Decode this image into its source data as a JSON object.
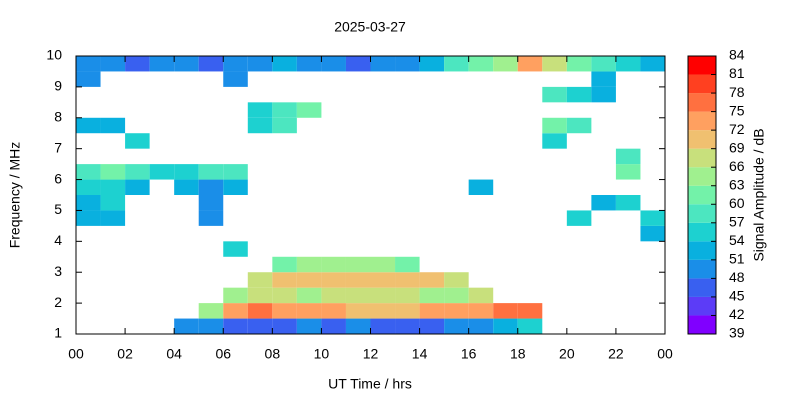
{
  "chart_data": {
    "type": "heatmap",
    "title": "2025-03-27",
    "x_label": "UT Time / hrs",
    "y_label": "Frequency / MHz",
    "colorbar_label": "Signal Amplitude / dB",
    "xlim": [
      0,
      24
    ],
    "xticks": [
      {
        "value": 0,
        "label": "00"
      },
      {
        "value": 2,
        "label": "02"
      },
      {
        "value": 4,
        "label": "04"
      },
      {
        "value": 6,
        "label": "06"
      },
      {
        "value": 8,
        "label": "08"
      },
      10,
      12,
      14,
      16,
      18,
      20,
      22,
      {
        "value": 24,
        "label": "00"
      }
    ],
    "ylim": [
      1,
      10
    ],
    "yticks": [
      1,
      2,
      3,
      4,
      5,
      6,
      7,
      8,
      9,
      10
    ],
    "clim": [
      39,
      84
    ],
    "cticks": [
      39,
      42,
      45,
      48,
      51,
      54,
      57,
      60,
      63,
      66,
      69,
      72,
      75,
      78,
      81,
      84
    ],
    "colors": [
      "#8000ff",
      "#5c3cf7",
      "#3960f0",
      "#1a8ee8",
      "#09b0df",
      "#1dd1d0",
      "#4ce6c0",
      "#73f2a9",
      "#a0f08f",
      "#c8e07c",
      "#f0c070",
      "#ffa060",
      "#ff7040",
      "#ff4020",
      "#ff0000"
    ],
    "xbins": [
      0,
      1,
      2,
      3,
      4,
      5,
      6,
      7,
      8,
      9,
      10,
      11,
      12,
      13,
      14,
      15,
      16,
      17,
      18,
      19,
      20,
      21,
      22,
      23,
      24
    ],
    "ybins": [
      1,
      1.5,
      2,
      2.5,
      3,
      3.5,
      4,
      4.5,
      5,
      5.5,
      6,
      6.5,
      7,
      7.5,
      8,
      8.5,
      9,
      9.5,
      10
    ],
    "values": [
      [
        null,
        null,
        null,
        null,
        50,
        48,
        47,
        46,
        46,
        48,
        47,
        48,
        47,
        46,
        47,
        48,
        50,
        52,
        55,
        null,
        null,
        null,
        null,
        null
      ],
      [
        null,
        null,
        null,
        null,
        null,
        63,
        72,
        75,
        73,
        72,
        72,
        70,
        70,
        71,
        72,
        73,
        74,
        75,
        76,
        null,
        null,
        null,
        null,
        null
      ],
      [
        null,
        null,
        null,
        null,
        null,
        null,
        63,
        66,
        66,
        65,
        66,
        66,
        66,
        66,
        65,
        65,
        66,
        null,
        null,
        null,
        null,
        null,
        null,
        null
      ],
      [
        null,
        null,
        null,
        null,
        null,
        null,
        null,
        66,
        69,
        69,
        69,
        70,
        70,
        69,
        69,
        68,
        null,
        null,
        null,
        null,
        null,
        null,
        null,
        null
      ],
      [
        null,
        null,
        null,
        null,
        null,
        null,
        null,
        null,
        60,
        63,
        63,
        63,
        63,
        60,
        null,
        null,
        null,
        null,
        null,
        null,
        null,
        null,
        null,
        null
      ],
      [
        null,
        null,
        null,
        null,
        null,
        null,
        55,
        null,
        null,
        null,
        null,
        null,
        null,
        null,
        null,
        null,
        null,
        null,
        null,
        null,
        null,
        null,
        null,
        null
      ],
      [
        null,
        null,
        null,
        null,
        null,
        null,
        null,
        null,
        null,
        null,
        null,
        null,
        null,
        null,
        null,
        null,
        null,
        null,
        null,
        null,
        null,
        null,
        null,
        51
      ],
      [
        51,
        51,
        null,
        null,
        null,
        48,
        null,
        null,
        null,
        null,
        null,
        null,
        null,
        null,
        null,
        null,
        null,
        null,
        null,
        null,
        54,
        null,
        null,
        54
      ],
      [
        51,
        54,
        null,
        null,
        null,
        48,
        null,
        null,
        null,
        null,
        null,
        null,
        null,
        null,
        null,
        null,
        null,
        null,
        null,
        null,
        null,
        51,
        54,
        null
      ],
      [
        54,
        54,
        51,
        null,
        51,
        48,
        51,
        null,
        null,
        null,
        null,
        null,
        null,
        null,
        null,
        null,
        51,
        null,
        null,
        null,
        null,
        null,
        null,
        null
      ],
      [
        57,
        60,
        57,
        55,
        54,
        57,
        57,
        null,
        null,
        null,
        null,
        null,
        null,
        null,
        null,
        null,
        null,
        null,
        null,
        null,
        null,
        null,
        60,
        null
      ],
      [
        null,
        null,
        null,
        null,
        null,
        null,
        null,
        null,
        null,
        null,
        null,
        null,
        null,
        null,
        null,
        null,
        null,
        null,
        null,
        null,
        null,
        null,
        57,
        null
      ],
      [
        null,
        null,
        54,
        null,
        null,
        null,
        null,
        null,
        null,
        null,
        null,
        null,
        null,
        null,
        null,
        null,
        null,
        null,
        null,
        54,
        null,
        null,
        null,
        null
      ],
      [
        51,
        51,
        null,
        null,
        null,
        null,
        null,
        54,
        57,
        null,
        null,
        null,
        null,
        null,
        null,
        null,
        null,
        null,
        null,
        60,
        57,
        null,
        null,
        null
      ],
      [
        null,
        null,
        null,
        null,
        null,
        null,
        null,
        54,
        57,
        60,
        null,
        null,
        null,
        null,
        null,
        null,
        null,
        null,
        null,
        null,
        null,
        null,
        null,
        null
      ],
      [
        null,
        null,
        null,
        null,
        null,
        null,
        null,
        null,
        null,
        null,
        null,
        null,
        null,
        null,
        null,
        null,
        null,
        null,
        null,
        57,
        54,
        51,
        null,
        null
      ],
      [
        48,
        null,
        null,
        null,
        null,
        null,
        48,
        null,
        null,
        null,
        null,
        null,
        null,
        null,
        null,
        null,
        null,
        null,
        null,
        null,
        null,
        51,
        null,
        null
      ],
      [
        48,
        48,
        45,
        48,
        48,
        45,
        48,
        48,
        51,
        48,
        48,
        45,
        48,
        48,
        51,
        57,
        60,
        63,
        72,
        66,
        60,
        57,
        54,
        51
      ]
    ]
  }
}
